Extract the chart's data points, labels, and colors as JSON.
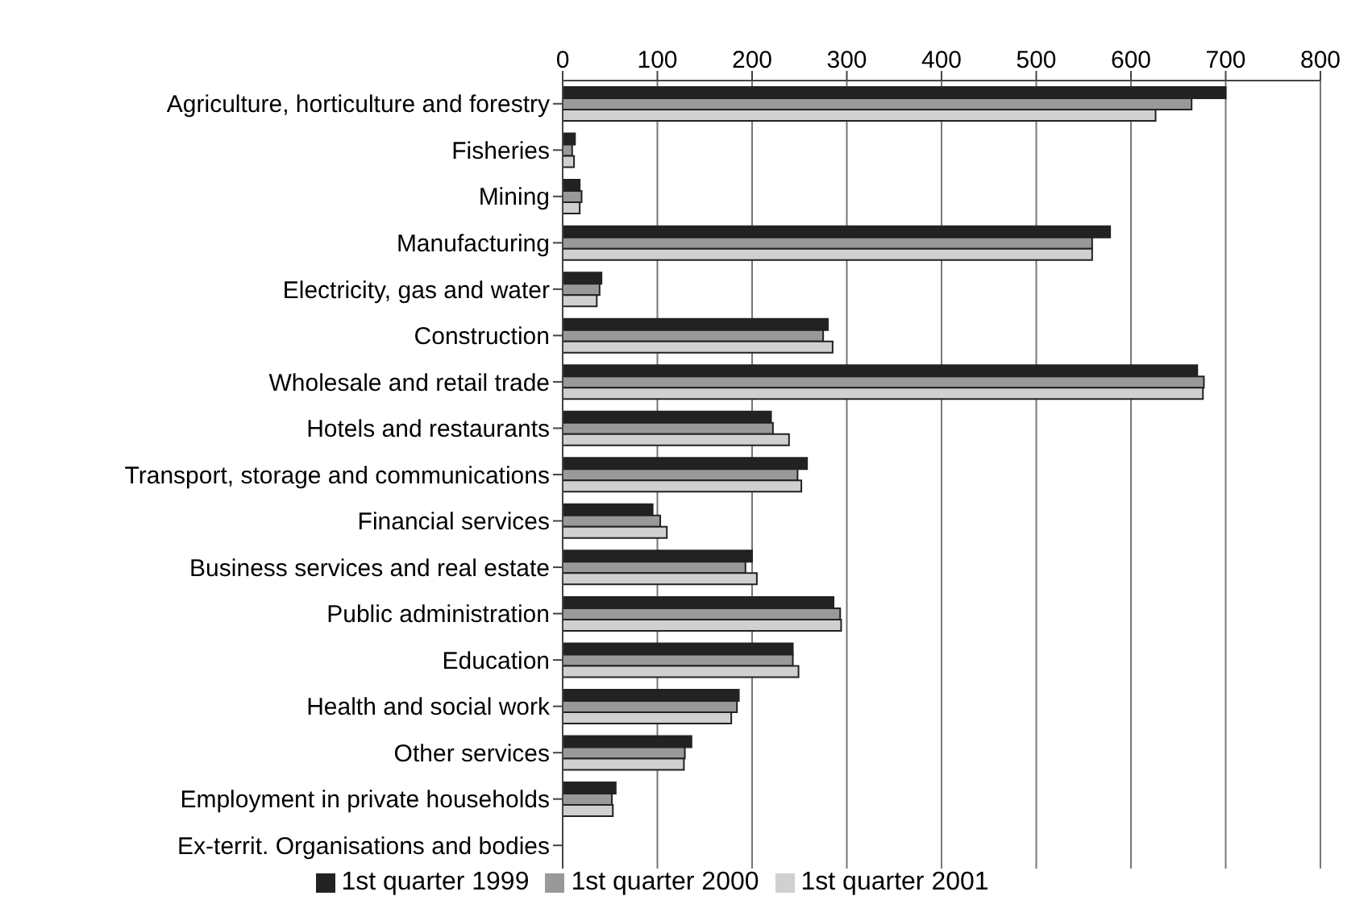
{
  "chart_data": {
    "type": "bar",
    "orientation": "horizontal",
    "categories": [
      "Agriculture, horticulture and forestry",
      "Fisheries",
      "Mining",
      "Manufacturing",
      "Electricity, gas and water",
      "Construction",
      "Wholesale and retail trade",
      "Hotels and restaurants",
      "Transport, storage and communications",
      "Financial services",
      "Business services and real estate",
      "Public administration",
      "Education",
      "Health and social work",
      "Other services",
      "Employment in private households",
      "Ex-territ. Organisations and bodies"
    ],
    "series": [
      {
        "name": "1st quarter 1999",
        "color": "#222222",
        "values": [
          700,
          13,
          18,
          578,
          41,
          280,
          670,
          220,
          258,
          95,
          200,
          286,
          243,
          186,
          136,
          56,
          null
        ]
      },
      {
        "name": "1st quarter 2000",
        "color": "#999999",
        "values": [
          664,
          10,
          20,
          559,
          39,
          275,
          677,
          222,
          248,
          103,
          193,
          293,
          243,
          184,
          129,
          52,
          null
        ]
      },
      {
        "name": "1st quarter 2001",
        "color": "#d0d0d0",
        "values": [
          626,
          12,
          18,
          559,
          36,
          285,
          676,
          239,
          252,
          110,
          205,
          294,
          249,
          178,
          128,
          53,
          null
        ]
      }
    ],
    "xlim": [
      0,
      800
    ],
    "xticks": [
      0,
      100,
      200,
      300,
      400,
      500,
      600,
      700,
      800
    ],
    "grid": "x",
    "legend": "bottom"
  }
}
